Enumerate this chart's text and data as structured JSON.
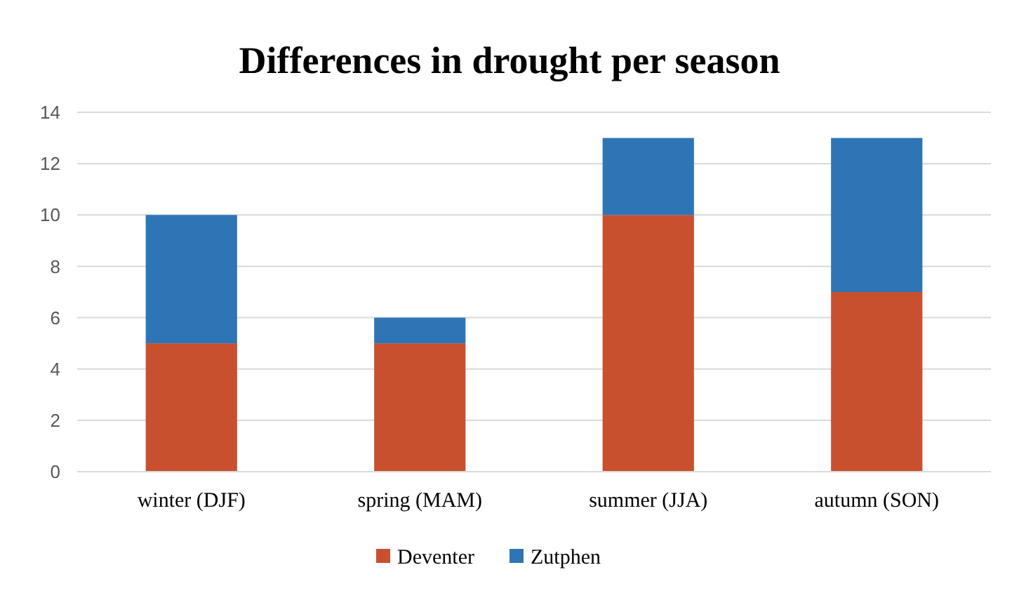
{
  "chart_data": {
    "type": "bar",
    "title": "Differences in drought per season",
    "categories": [
      "winter (DJF)",
      "spring (MAM)",
      "summer (JJA)",
      "autumn (SON)"
    ],
    "series": [
      {
        "name": "Deventer",
        "color": "#c9502e",
        "values": [
          5,
          5,
          10,
          7
        ]
      },
      {
        "name": "Zutphen",
        "color": "#2e75b6",
        "values": [
          5,
          1,
          3,
          6
        ]
      }
    ],
    "stacked": true,
    "ylim": [
      0,
      14
    ],
    "yticks": [
      0,
      2,
      4,
      6,
      8,
      10,
      12,
      14
    ],
    "grid": "y",
    "legend": "bottom"
  }
}
